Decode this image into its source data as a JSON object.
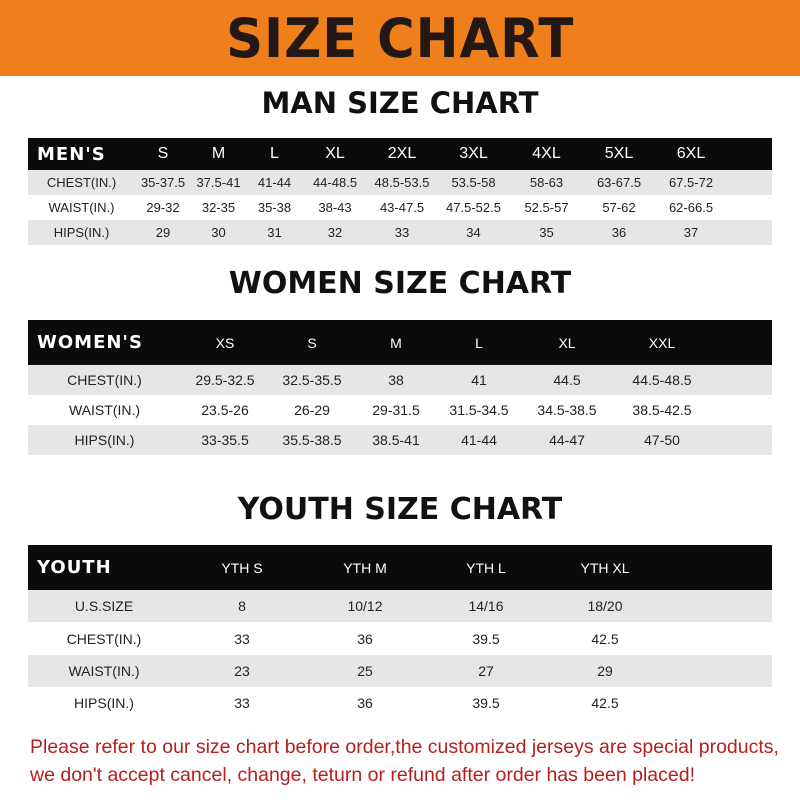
{
  "banner": "SIZE CHART",
  "men": {
    "title": "MAN SIZE CHART",
    "header": [
      "MEN'S",
      "S",
      "M",
      "L",
      "XL",
      "2XL",
      "3XL",
      "4XL",
      "5XL",
      "6XL"
    ],
    "rows": [
      [
        "CHEST(IN.)",
        "35-37.5",
        "37.5-41",
        "41-44",
        "44-48.5",
        "48.5-53.5",
        "53.5-58",
        "58-63",
        "63-67.5",
        "67.5-72"
      ],
      [
        "WAIST(IN.)",
        "29-32",
        "32-35",
        "35-38",
        "38-43",
        "43-47.5",
        "47.5-52.5",
        "52.5-57",
        "57-62",
        "62-66.5"
      ],
      [
        "HIPS(IN.)",
        "29",
        "30",
        "31",
        "32",
        "33",
        "34",
        "35",
        "36",
        "37"
      ]
    ]
  },
  "women": {
    "title": "WOMEN SIZE CHART",
    "header": [
      "WOMEN'S",
      "XS",
      "S",
      "M",
      "L",
      "XL",
      "XXL"
    ],
    "rows": [
      [
        "CHEST(IN.)",
        "29.5-32.5",
        "32.5-35.5",
        "38",
        "41",
        "44.5",
        "44.5-48.5"
      ],
      [
        "WAIST(IN.)",
        "23.5-26",
        "26-29",
        "29-31.5",
        "31.5-34.5",
        "34.5-38.5",
        "38.5-42.5"
      ],
      [
        "HIPS(IN.)",
        "33-35.5",
        "35.5-38.5",
        "38.5-41",
        "41-44",
        "44-47",
        "47-50"
      ]
    ]
  },
  "youth": {
    "title": "YOUTH SIZE CHART",
    "header": [
      "YOUTH",
      "YTH S",
      "YTH M",
      "YTH L",
      "YTH XL"
    ],
    "rows": [
      [
        "U.S.SIZE",
        "8",
        "10/12",
        "14/16",
        "18/20"
      ],
      [
        "CHEST(IN.)",
        "33",
        "36",
        "39.5",
        "42.5"
      ],
      [
        "WAIST(IN.)",
        "23",
        "25",
        "27",
        "29"
      ],
      [
        "HIPS(IN.)",
        "33",
        "36",
        "39.5",
        "42.5"
      ]
    ]
  },
  "note": "Please refer to our size chart before order,the customized jerseys are special products, we don't accept cancel, change, teturn or refund after order has been placed!",
  "colors": {
    "banner": "#ef7f1a",
    "header_row": "#0d0a0a",
    "stripe": "#e6e6e6",
    "note": "#b3201f"
  }
}
